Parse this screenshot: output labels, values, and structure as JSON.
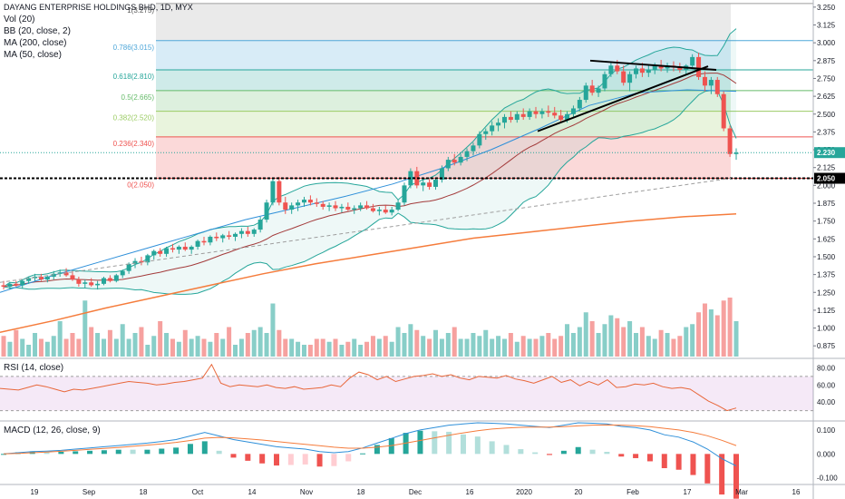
{
  "header": {
    "symbol": "DAYANG ENTERPRISE HOLDINGS BHD, 1D, MYX",
    "indicators": [
      "Vol (20)",
      "BB (20, close, 2)",
      "MA (200, close)",
      "MA (50, close)"
    ]
  },
  "rsi_title": "RSI (14, close)",
  "macd_title": "MACD (12, 26, close, 9)",
  "colors": {
    "up": "#26a69a",
    "down": "#ef5350",
    "bb": "#26a69a",
    "ma200": "#f57c3c",
    "ma50": "#2e8fd9",
    "ma20": "#a33b3b",
    "rsi": "#e8673a",
    "macd": "#2e8fd9",
    "signal": "#f57c3c",
    "trendline": "#000000",
    "support": "#000000"
  },
  "chart_data": [
    {
      "type": "candlestick",
      "title": "DAYANG ENTERPRISE HOLDINGS BHD, 1D, MYX",
      "ylim": [
        0.8,
        3.3
      ],
      "y_ticks": [
        "3.250",
        "3.125",
        "3.000",
        "2.875",
        "2.750",
        "2.625",
        "2.500",
        "2.375",
        "2.250",
        "2.125",
        "2.000",
        "1.875",
        "1.750",
        "1.625",
        "1.500",
        "1.375",
        "1.250",
        "1.125",
        "1.000",
        "0.875"
      ],
      "x_ticks": [
        "19",
        "Sep",
        "18",
        "Oct",
        "14",
        "Nov",
        "18",
        "Dec",
        "16",
        "2020",
        "20",
        "Feb",
        "17",
        "Mar",
        "16"
      ],
      "last_price": "2.230",
      "support_price": "2.050",
      "fibonacci": [
        {
          "label": "1(3.275)",
          "price": 3.275,
          "fill": "#9e9e9e"
        },
        {
          "label": "0.786(3.015)",
          "price": 3.015,
          "fill": "#4fa7d9"
        },
        {
          "label": "0.618(2.810)",
          "price": 2.81,
          "fill": "#26a69a"
        },
        {
          "label": "0.5(2.665)",
          "price": 2.665,
          "fill": "#66bb6a"
        },
        {
          "label": "0.382(2.520)",
          "price": 2.52,
          "fill": "#9ccc65"
        },
        {
          "label": "0.236(2.340)",
          "price": 2.34,
          "fill": "#ef5350"
        },
        {
          "label": "0(2.050)",
          "price": 2.05,
          "fill": "#ef5350"
        }
      ],
      "ohlc": [
        [
          1.3,
          1.33,
          1.27,
          1.29
        ],
        [
          1.29,
          1.32,
          1.27,
          1.31
        ],
        [
          1.31,
          1.33,
          1.29,
          1.3
        ],
        [
          1.3,
          1.34,
          1.28,
          1.33
        ],
        [
          1.33,
          1.36,
          1.31,
          1.35
        ],
        [
          1.35,
          1.38,
          1.33,
          1.36
        ],
        [
          1.36,
          1.38,
          1.33,
          1.34
        ],
        [
          1.34,
          1.37,
          1.32,
          1.36
        ],
        [
          1.36,
          1.4,
          1.34,
          1.38
        ],
        [
          1.38,
          1.41,
          1.36,
          1.39
        ],
        [
          1.39,
          1.42,
          1.36,
          1.37
        ],
        [
          1.37,
          1.4,
          1.33,
          1.34
        ],
        [
          1.34,
          1.36,
          1.29,
          1.31
        ],
        [
          1.31,
          1.34,
          1.28,
          1.32
        ],
        [
          1.32,
          1.35,
          1.29,
          1.3
        ],
        [
          1.3,
          1.33,
          1.27,
          1.31
        ],
        [
          1.31,
          1.36,
          1.3,
          1.35
        ],
        [
          1.35,
          1.37,
          1.32,
          1.33
        ],
        [
          1.33,
          1.38,
          1.32,
          1.37
        ],
        [
          1.37,
          1.41,
          1.35,
          1.4
        ],
        [
          1.4,
          1.46,
          1.38,
          1.45
        ],
        [
          1.45,
          1.49,
          1.42,
          1.47
        ],
        [
          1.47,
          1.5,
          1.44,
          1.46
        ],
        [
          1.46,
          1.52,
          1.44,
          1.51
        ],
        [
          1.51,
          1.55,
          1.48,
          1.54
        ],
        [
          1.54,
          1.56,
          1.5,
          1.52
        ],
        [
          1.52,
          1.57,
          1.5,
          1.56
        ],
        [
          1.56,
          1.59,
          1.53,
          1.55
        ],
        [
          1.55,
          1.58,
          1.52,
          1.57
        ],
        [
          1.57,
          1.6,
          1.54,
          1.55
        ],
        [
          1.55,
          1.58,
          1.52,
          1.57
        ],
        [
          1.57,
          1.62,
          1.55,
          1.61
        ],
        [
          1.61,
          1.64,
          1.58,
          1.6
        ],
        [
          1.6,
          1.65,
          1.58,
          1.64
        ],
        [
          1.64,
          1.67,
          1.61,
          1.63
        ],
        [
          1.63,
          1.66,
          1.6,
          1.65
        ],
        [
          1.65,
          1.68,
          1.62,
          1.64
        ],
        [
          1.64,
          1.67,
          1.61,
          1.66
        ],
        [
          1.66,
          1.7,
          1.63,
          1.68
        ],
        [
          1.68,
          1.71,
          1.64,
          1.66
        ],
        [
          1.66,
          1.7,
          1.64,
          1.69
        ],
        [
          1.69,
          1.78,
          1.67,
          1.76
        ],
        [
          1.76,
          1.9,
          1.74,
          1.88
        ],
        [
          1.88,
          2.05,
          1.86,
          2.03
        ],
        [
          2.03,
          2.06,
          1.86,
          1.88
        ],
        [
          1.88,
          1.92,
          1.8,
          1.83
        ],
        [
          1.83,
          1.88,
          1.8,
          1.86
        ],
        [
          1.86,
          1.9,
          1.82,
          1.88
        ],
        [
          1.88,
          1.92,
          1.85,
          1.9
        ],
        [
          1.9,
          1.93,
          1.86,
          1.88
        ],
        [
          1.88,
          1.91,
          1.85,
          1.87
        ],
        [
          1.87,
          1.89,
          1.83,
          1.85
        ],
        [
          1.85,
          1.88,
          1.82,
          1.86
        ],
        [
          1.86,
          1.89,
          1.82,
          1.84
        ],
        [
          1.84,
          1.87,
          1.81,
          1.85
        ],
        [
          1.85,
          1.88,
          1.82,
          1.83
        ],
        [
          1.83,
          1.86,
          1.8,
          1.84
        ],
        [
          1.84,
          1.88,
          1.82,
          1.86
        ],
        [
          1.86,
          1.89,
          1.83,
          1.84
        ],
        [
          1.84,
          1.87,
          1.81,
          1.82
        ],
        [
          1.82,
          1.85,
          1.79,
          1.83
        ],
        [
          1.83,
          1.86,
          1.8,
          1.81
        ],
        [
          1.81,
          1.85,
          1.79,
          1.83
        ],
        [
          1.83,
          1.9,
          1.82,
          1.88
        ],
        [
          1.88,
          2.02,
          1.86,
          2.0
        ],
        [
          2.0,
          2.12,
          1.98,
          2.1
        ],
        [
          2.1,
          2.13,
          1.98,
          2.0
        ],
        [
          2.0,
          2.04,
          1.96,
          2.02
        ],
        [
          2.02,
          2.05,
          1.97,
          1.99
        ],
        [
          1.99,
          2.05,
          1.97,
          2.04
        ],
        [
          2.04,
          2.14,
          2.02,
          2.12
        ],
        [
          2.12,
          2.2,
          2.1,
          2.18
        ],
        [
          2.18,
          2.22,
          2.14,
          2.16
        ],
        [
          2.16,
          2.22,
          2.14,
          2.2
        ],
        [
          2.2,
          2.26,
          2.17,
          2.24
        ],
        [
          2.24,
          2.3,
          2.21,
          2.28
        ],
        [
          2.28,
          2.38,
          2.26,
          2.36
        ],
        [
          2.36,
          2.4,
          2.32,
          2.38
        ],
        [
          2.38,
          2.45,
          2.35,
          2.42
        ],
        [
          2.42,
          2.47,
          2.38,
          2.44
        ],
        [
          2.44,
          2.5,
          2.4,
          2.48
        ],
        [
          2.48,
          2.52,
          2.44,
          2.46
        ],
        [
          2.46,
          2.52,
          2.44,
          2.5
        ],
        [
          2.5,
          2.54,
          2.46,
          2.48
        ],
        [
          2.48,
          2.54,
          2.46,
          2.52
        ],
        [
          2.52,
          2.55,
          2.47,
          2.5
        ],
        [
          2.5,
          2.54,
          2.47,
          2.52
        ],
        [
          2.52,
          2.56,
          2.48,
          2.51
        ],
        [
          2.51,
          2.55,
          2.47,
          2.49
        ],
        [
          2.49,
          2.53,
          2.44,
          2.46
        ],
        [
          2.46,
          2.52,
          2.44,
          2.5
        ],
        [
          2.5,
          2.56,
          2.48,
          2.54
        ],
        [
          2.54,
          2.62,
          2.52,
          2.6
        ],
        [
          2.6,
          2.72,
          2.58,
          2.7
        ],
        [
          2.7,
          2.74,
          2.63,
          2.65
        ],
        [
          2.65,
          2.7,
          2.62,
          2.68
        ],
        [
          2.68,
          2.8,
          2.66,
          2.78
        ],
        [
          2.78,
          2.86,
          2.76,
          2.84
        ],
        [
          2.84,
          2.88,
          2.78,
          2.8
        ],
        [
          2.8,
          2.84,
          2.7,
          2.72
        ],
        [
          2.72,
          2.8,
          2.66,
          2.78
        ],
        [
          2.78,
          2.84,
          2.75,
          2.82
        ],
        [
          2.82,
          2.86,
          2.76,
          2.79
        ],
        [
          2.79,
          2.84,
          2.76,
          2.81
        ],
        [
          2.81,
          2.86,
          2.78,
          2.84
        ],
        [
          2.84,
          2.88,
          2.8,
          2.82
        ],
        [
          2.82,
          2.86,
          2.79,
          2.84
        ],
        [
          2.84,
          2.87,
          2.8,
          2.83
        ],
        [
          2.83,
          2.86,
          2.79,
          2.81
        ],
        [
          2.81,
          2.85,
          2.78,
          2.84
        ],
        [
          2.84,
          2.92,
          2.82,
          2.9
        ],
        [
          2.9,
          2.93,
          2.74,
          2.76
        ],
        [
          2.76,
          2.8,
          2.66,
          2.7
        ],
        [
          2.7,
          2.76,
          2.64,
          2.74
        ],
        [
          2.74,
          2.76,
          2.62,
          2.64
        ],
        [
          2.64,
          2.66,
          2.38,
          2.4
        ],
        [
          2.4,
          2.42,
          2.2,
          2.22
        ],
        [
          2.22,
          2.26,
          2.18,
          2.23
        ]
      ],
      "ma50": [
        1.25,
        1.36,
        1.46,
        1.56,
        1.66,
        1.76,
        1.84,
        1.92,
        2.01,
        2.12,
        2.25,
        2.4,
        2.56,
        2.65,
        2.67,
        2.66
      ],
      "ma200": [
        0.97,
        1.05,
        1.14,
        1.22,
        1.3,
        1.38,
        1.45,
        1.51,
        1.57,
        1.63,
        1.67,
        1.71,
        1.75,
        1.78,
        1.8
      ],
      "volume": [
        0.35,
        0.25,
        0.45,
        0.3,
        0.2,
        0.4,
        0.3,
        0.25,
        0.35,
        0.6,
        0.3,
        0.4,
        0.3,
        0.95,
        0.5,
        0.4,
        0.3,
        0.45,
        0.3,
        0.55,
        0.3,
        0.4,
        0.5,
        0.2,
        0.35,
        0.6,
        0.4,
        0.3,
        0.25,
        0.45,
        0.3,
        0.35,
        0.3,
        0.25,
        0.4,
        0.3,
        0.5,
        0.2,
        0.3,
        0.4,
        0.45,
        0.5,
        0.4,
        0.9,
        0.45,
        0.3,
        0.3,
        0.25,
        0.2,
        0.2,
        0.3,
        0.3,
        0.25,
        0.3,
        0.2,
        0.25,
        0.3,
        0.2,
        0.25,
        0.35,
        0.3,
        0.35,
        0.25,
        0.5,
        0.4,
        0.55,
        0.45,
        0.35,
        0.3,
        0.45,
        0.3,
        0.4,
        0.5,
        0.3,
        0.3,
        0.4,
        0.35,
        0.45,
        0.3,
        0.35,
        0.3,
        0.4,
        0.25,
        0.35,
        0.3,
        0.3,
        0.35,
        0.4,
        0.3,
        0.35,
        0.55,
        0.4,
        0.5,
        0.75,
        0.6,
        0.4,
        0.55,
        0.7,
        0.65,
        0.5,
        0.6,
        0.4,
        0.5,
        0.35,
        0.3,
        0.45,
        0.4,
        0.3,
        0.35,
        0.5,
        0.55,
        0.75,
        0.9,
        0.8,
        0.7,
        0.95,
        1.0,
        0.6
      ],
      "support_line_style": "dotted"
    },
    {
      "type": "line",
      "title": "RSI (14, close)",
      "ylim": [
        20,
        90
      ],
      "y_ticks": [
        "80.00",
        "60.00",
        "40.00"
      ],
      "band": [
        30,
        70
      ],
      "values": [
        56,
        55,
        54,
        57,
        60,
        58,
        55,
        52,
        55,
        54,
        56,
        58,
        60,
        62,
        64,
        63,
        62,
        60,
        61,
        63,
        64,
        66,
        68,
        84,
        62,
        58,
        60,
        59,
        58,
        60,
        57,
        56,
        58,
        55,
        56,
        57,
        60,
        58,
        68,
        75,
        72,
        66,
        70,
        64,
        67,
        70,
        71,
        73,
        70,
        72,
        68,
        66,
        70,
        69,
        68,
        71,
        67,
        65,
        62,
        66,
        70,
        63,
        66,
        59,
        64,
        60,
        66,
        57,
        58,
        61,
        60,
        62,
        58,
        56,
        57,
        55,
        48,
        41,
        36,
        30,
        33
      ]
    },
    {
      "type": "line",
      "title": "MACD (12, 26, close, 9)",
      "ylim": [
        -0.12,
        0.13
      ],
      "y_ticks": [
        "0.100",
        "0.000",
        "-0.100"
      ],
      "macd": [
        0.0,
        0.005,
        0.01,
        0.012,
        0.015,
        0.02,
        0.025,
        0.03,
        0.035,
        0.04,
        0.045,
        0.052,
        0.06,
        0.075,
        0.09,
        0.075,
        0.06,
        0.05,
        0.04,
        0.03,
        0.025,
        0.02,
        0.01,
        0.005,
        0.01,
        0.025,
        0.045,
        0.065,
        0.085,
        0.1,
        0.11,
        0.12,
        0.125,
        0.13,
        0.128,
        0.125,
        0.12,
        0.115,
        0.11,
        0.12,
        0.13,
        0.128,
        0.125,
        0.115,
        0.11,
        0.1,
        0.08,
        0.07,
        0.05,
        0.02,
        -0.02,
        -0.05
      ],
      "signal": [
        0.0,
        0.002,
        0.005,
        0.008,
        0.011,
        0.015,
        0.019,
        0.023,
        0.027,
        0.032,
        0.037,
        0.042,
        0.048,
        0.056,
        0.066,
        0.069,
        0.067,
        0.063,
        0.058,
        0.052,
        0.046,
        0.04,
        0.034,
        0.028,
        0.024,
        0.024,
        0.028,
        0.035,
        0.045,
        0.056,
        0.067,
        0.078,
        0.088,
        0.097,
        0.104,
        0.108,
        0.111,
        0.112,
        0.112,
        0.114,
        0.117,
        0.12,
        0.121,
        0.12,
        0.118,
        0.114,
        0.107,
        0.1,
        0.09,
        0.076,
        0.057,
        0.035
      ]
    }
  ]
}
